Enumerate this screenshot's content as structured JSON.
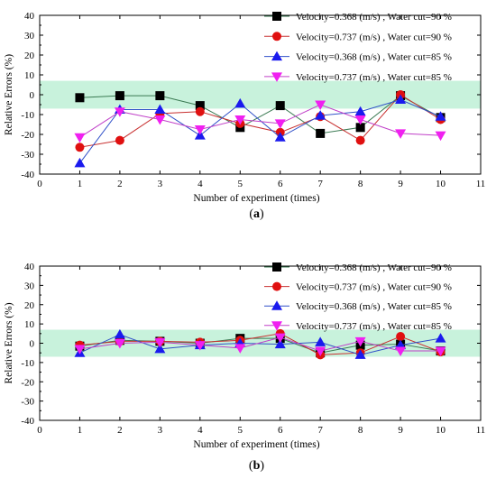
{
  "chart_data": [
    {
      "type": "line",
      "panel_label": "(a)",
      "panel_letter": "a",
      "xlabel": "Number of experiment (times)",
      "ylabel": "Relative Errors (%)",
      "xlim": [
        0,
        11
      ],
      "ylim": [
        -40,
        40
      ],
      "xticks": [
        0,
        1,
        2,
        3,
        4,
        5,
        6,
        7,
        8,
        9,
        10,
        11
      ],
      "yticks": [
        -40,
        -30,
        -20,
        -10,
        0,
        10,
        20,
        30,
        40
      ],
      "band": [
        -7,
        7
      ],
      "band_color": "#c8f2dc",
      "grid": false,
      "legend_position": "top-right",
      "x": [
        1,
        2,
        3,
        4,
        5,
        6,
        7,
        8,
        9,
        10
      ],
      "series": [
        {
          "name": "Velocity=0.368 (m/s) , Water cut=90 %",
          "marker": "square",
          "color": "#000000",
          "line_color": "#3a7a52",
          "values": [
            -1.5,
            -0.5,
            -0.5,
            -5.5,
            -16.5,
            -5.5,
            -19.5,
            -16.5,
            -0.5,
            -11.5
          ]
        },
        {
          "name": "Velocity=0.737 (m/s) , Water cut=90 %",
          "marker": "circle",
          "color": "#e01010",
          "line_color": "#c83030",
          "values": [
            -26.5,
            -23,
            -9.5,
            -8.5,
            -14.5,
            -19,
            -11,
            -23,
            0,
            -12.5
          ]
        },
        {
          "name": "Velocity=0.368 (m/s) , Water cut=85 %",
          "marker": "triangle-up",
          "color": "#1a1aee",
          "line_color": "#3050c8",
          "values": [
            -34.5,
            -7.5,
            -7.5,
            -20.5,
            -4.5,
            -21.5,
            -10.5,
            -8.5,
            -2.5,
            -11
          ]
        },
        {
          "name": "Velocity=0.737 (m/s) , Water cut=85 %",
          "marker": "triangle-down",
          "color": "#f020f0",
          "line_color": "#c040c8",
          "values": [
            -21.5,
            -8.5,
            -12.5,
            -17.5,
            -12.5,
            -14.5,
            -5,
            -12.5,
            -19.5,
            -20.5
          ]
        }
      ]
    },
    {
      "type": "line",
      "panel_label": "(b)",
      "panel_letter": "b",
      "xlabel": "Number of experiment (times)",
      "ylabel": "Relative Errors (%)",
      "xlim": [
        0,
        11
      ],
      "ylim": [
        -40,
        40
      ],
      "xticks": [
        0,
        1,
        2,
        3,
        4,
        5,
        6,
        7,
        8,
        9,
        10,
        11
      ],
      "yticks": [
        -40,
        -30,
        -20,
        -10,
        0,
        10,
        20,
        30,
        40
      ],
      "band": [
        -7,
        7
      ],
      "band_color": "#c8f2dc",
      "grid": false,
      "legend_position": "top-right",
      "x": [
        1,
        2,
        3,
        4,
        5,
        6,
        7,
        8,
        9,
        10
      ],
      "series": [
        {
          "name": "Velocity=0.368 (m/s) , Water cut=90 %",
          "marker": "square",
          "color": "#000000",
          "line_color": "#3a7a52",
          "values": [
            -1.5,
            1.5,
            1,
            0,
            2.5,
            2.5,
            -5,
            -1,
            -0.5,
            -4
          ]
        },
        {
          "name": "Velocity=0.737 (m/s) , Water cut=90 %",
          "marker": "circle",
          "color": "#e01010",
          "line_color": "#c83030",
          "values": [
            -1,
            1,
            1,
            0.5,
            1.5,
            5,
            -6,
            -5,
            3.5,
            -4.5
          ]
        },
        {
          "name": "Velocity=0.368 (m/s) , Water cut=85 %",
          "marker": "triangle-up",
          "color": "#1a1aee",
          "line_color": "#3050c8",
          "values": [
            -5,
            4.5,
            -3,
            -1,
            0,
            -0.5,
            0.5,
            -6,
            -1,
            2.5
          ]
        },
        {
          "name": "Velocity=0.737 (m/s) , Water cut=85 %",
          "marker": "triangle-down",
          "color": "#f020f0",
          "line_color": "#c040c8",
          "values": [
            -3,
            0,
            0.5,
            -1,
            -2.5,
            3,
            -4,
            1,
            -4,
            -4
          ]
        }
      ]
    }
  ]
}
